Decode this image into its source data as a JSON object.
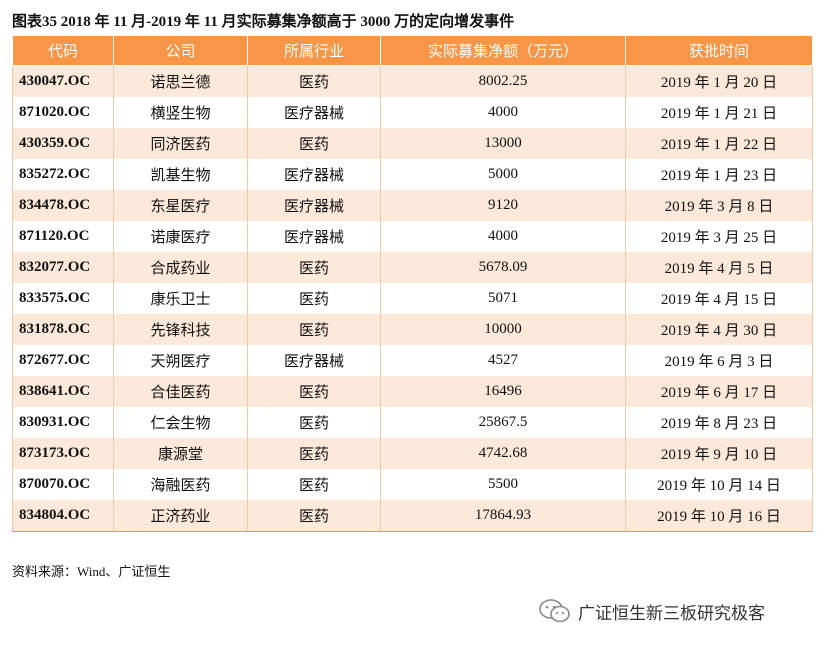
{
  "title": "图表35 2018 年 11 月-2019 年 11 月实际募集净额高于 3000 万的定向增发事件",
  "table": {
    "header": [
      "代码",
      "公司",
      "所属行业",
      "实际募集净额（万元）",
      "获批时间"
    ],
    "rows": [
      [
        "430047.OC",
        "诺思兰德",
        "医药",
        "8002.25",
        "2019 年 1 月 20 日"
      ],
      [
        "871020.OC",
        "横竖生物",
        "医疗器械",
        "4000",
        "2019 年 1 月 21 日"
      ],
      [
        "430359.OC",
        "同济医药",
        "医药",
        "13000",
        "2019 年 1 月 22 日"
      ],
      [
        "835272.OC",
        "凯基生物",
        "医疗器械",
        "5000",
        "2019 年 1 月 23 日"
      ],
      [
        "834478.OC",
        "东星医疗",
        "医疗器械",
        "9120",
        "2019 年 3 月 8 日"
      ],
      [
        "871120.OC",
        "诺康医疗",
        "医疗器械",
        "4000",
        "2019 年 3 月 25 日"
      ],
      [
        "832077.OC",
        "合成药业",
        "医药",
        "5678.09",
        "2019 年 4 月 5 日"
      ],
      [
        "833575.OC",
        "康乐卫士",
        "医药",
        "5071",
        "2019 年 4 月 15 日"
      ],
      [
        "831878.OC",
        "先锋科技",
        "医药",
        "10000",
        "2019 年 4 月 30 日"
      ],
      [
        "872677.OC",
        "天朔医疗",
        "医疗器械",
        "4527",
        "2019 年 6 月 3 日"
      ],
      [
        "838641.OC",
        "合佳医药",
        "医药",
        "16496",
        "2019 年 6 月 17 日"
      ],
      [
        "830931.OC",
        "仁会生物",
        "医药",
        "25867.5",
        "2019 年 8 月 23 日"
      ],
      [
        "873173.OC",
        "康源堂",
        "医药",
        "4742.68",
        "2019 年 9 月 10 日"
      ],
      [
        "870070.OC",
        "海融医药",
        "医药",
        "5500",
        "2019 年 10 月 14 日"
      ],
      [
        "834804.OC",
        "正济药业",
        "医药",
        "17864.93",
        "2019 年 10 月 16 日"
      ]
    ]
  },
  "source": "资料来源：Wind、广证恒生",
  "watermark": "广证恒生新三板研究极客"
}
